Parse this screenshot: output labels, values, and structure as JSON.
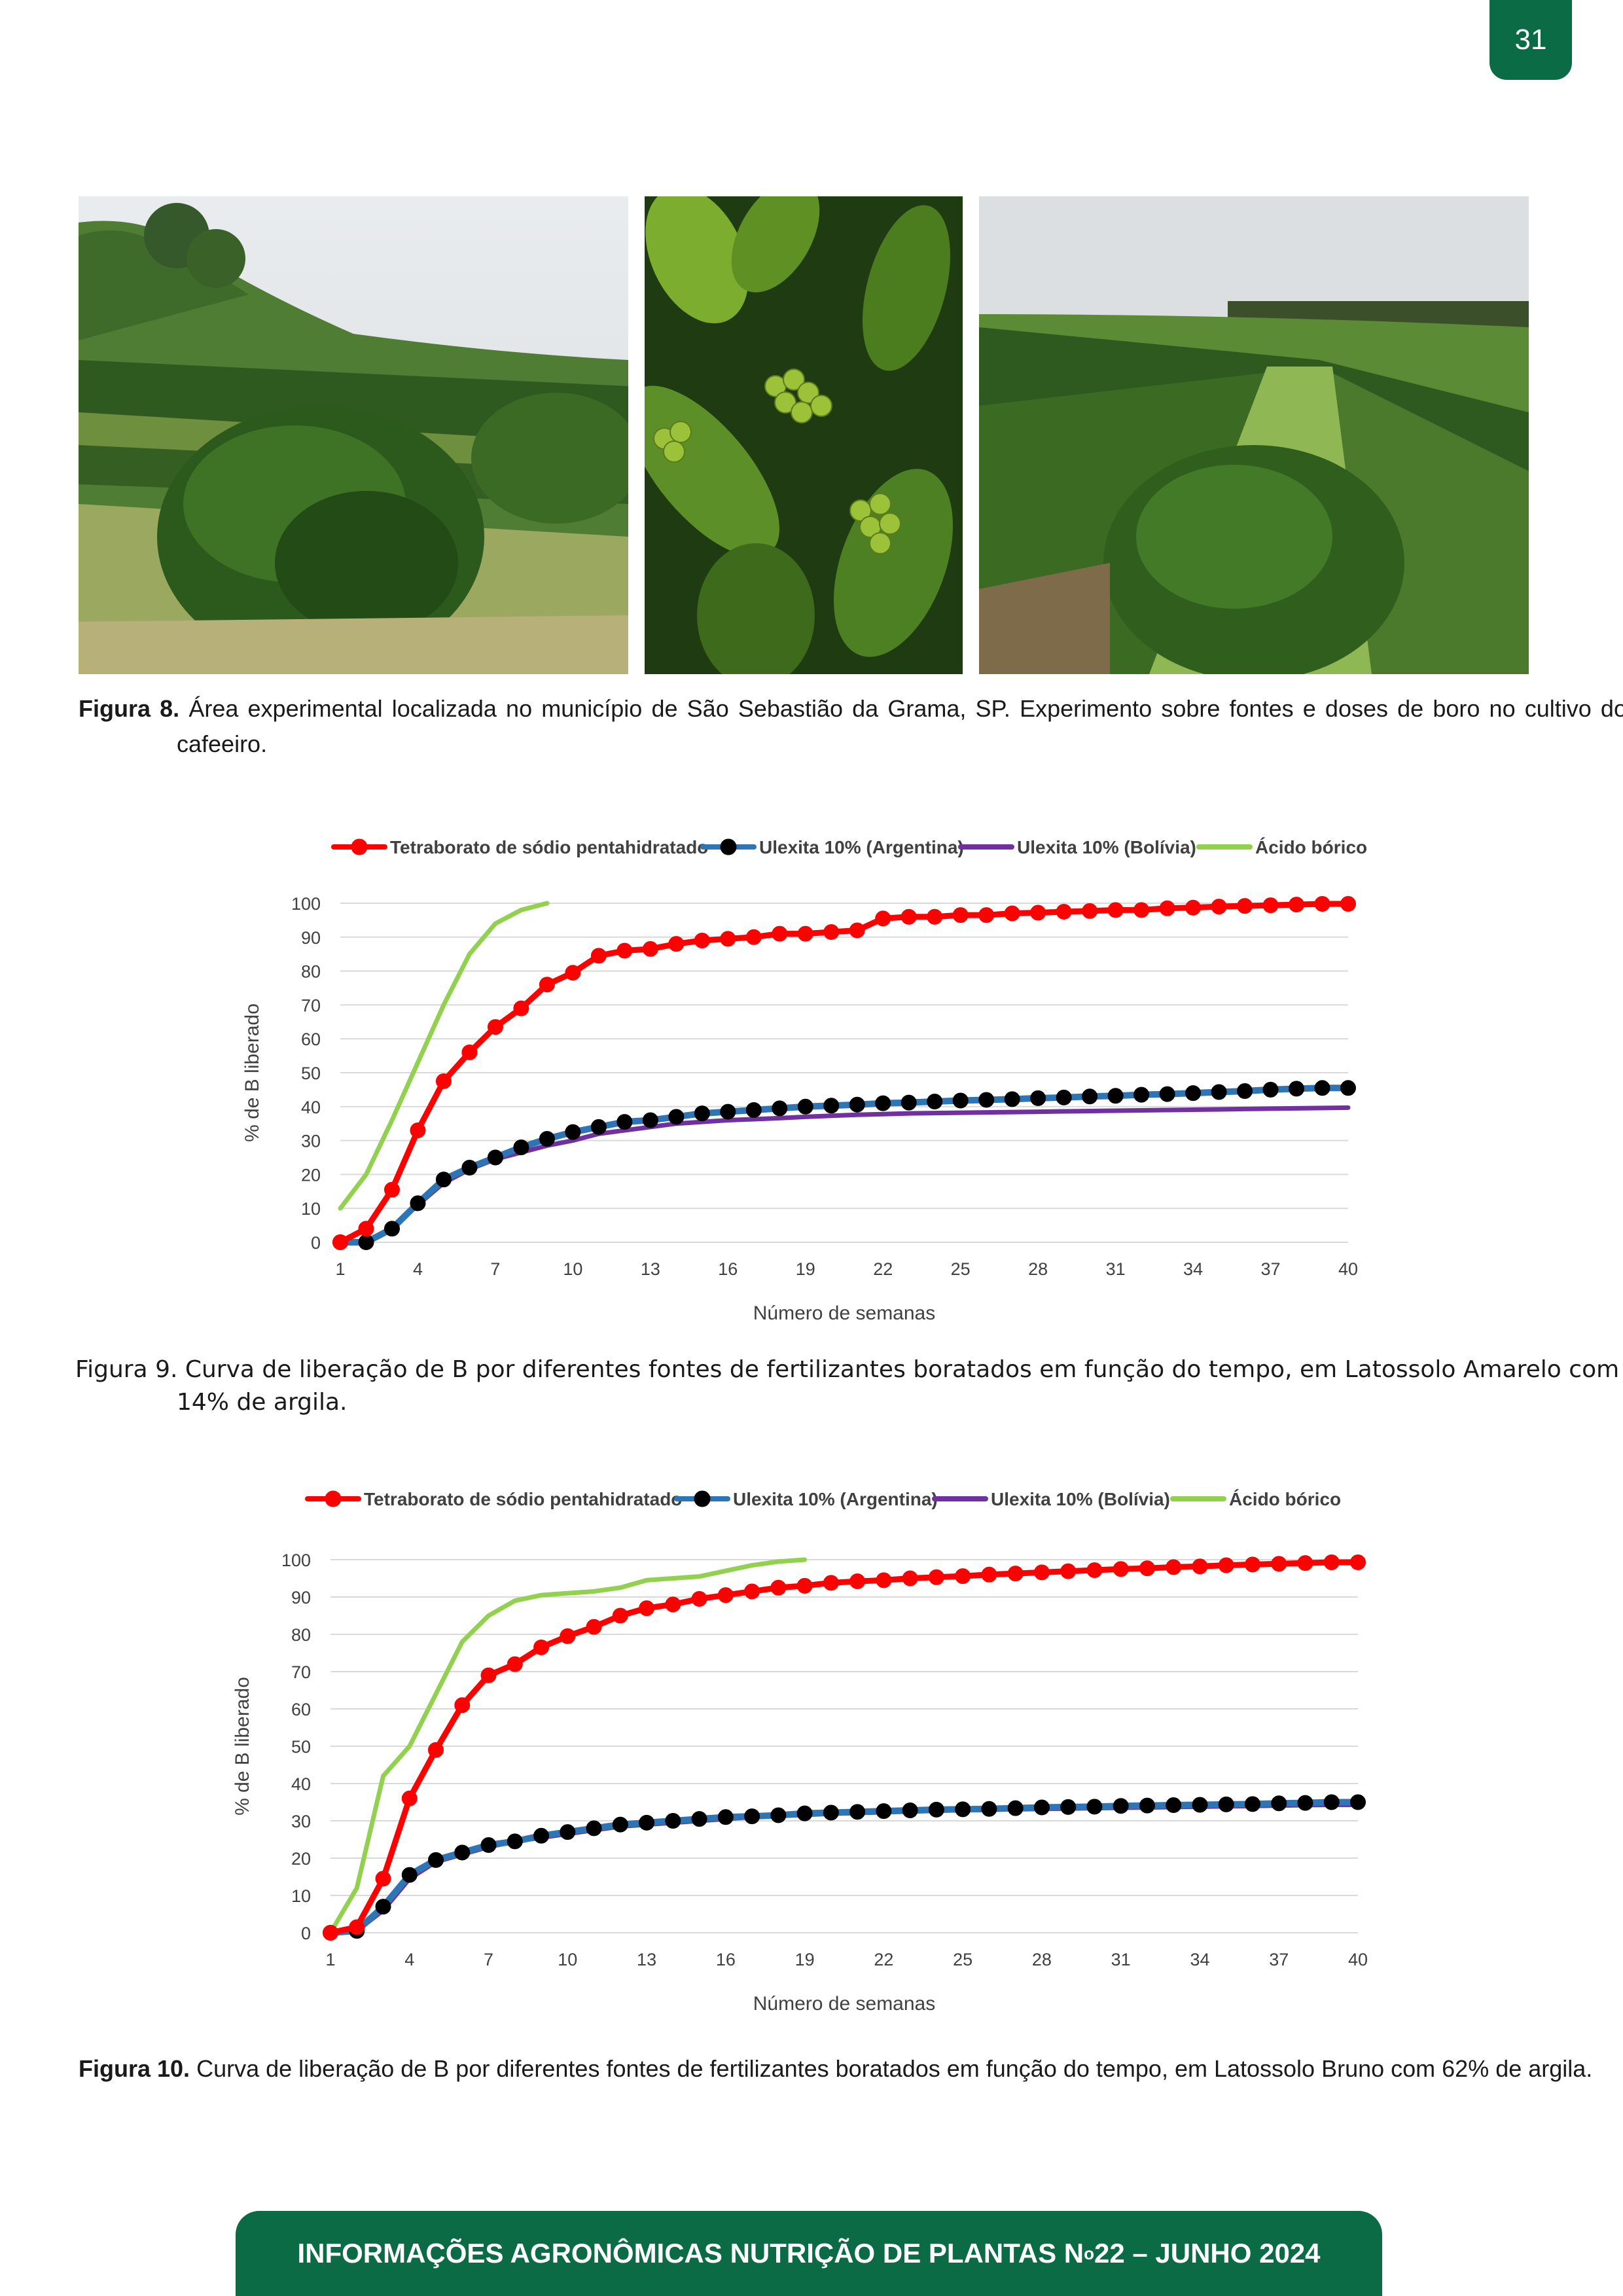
{
  "page_number": "31",
  "figure8": {
    "label": "Figura 8.",
    "text": "Área experimental localizada no município de São Sebastião da Grama, SP. Experimento sobre fontes e doses de boro no cultivo do cafeeiro."
  },
  "figure9": {
    "caption": "Figura 9. Curva de liberação de B por diferentes fontes de fertilizantes boratados em função do tempo, em Latossolo Amarelo com 14% de argila."
  },
  "figure10": {
    "label": "Figura 10.",
    "text": "Curva de liberação de B por diferentes fontes de fertilizantes boratados em função do tempo, em Latossolo Bruno com 62% de argila."
  },
  "footer": {
    "before": "INFORMAÇÕES AGRONÔMICAS NUTRIÇÃO DE PLANTAS N",
    "sup": "o",
    "after": " 22 – JUNHO 2024"
  },
  "chart_data": [
    {
      "type": "line",
      "xlabel": "Número de semanas",
      "ylabel": "% de B liberado",
      "ylim": [
        0,
        100
      ],
      "yticks": [
        0,
        10,
        20,
        30,
        40,
        50,
        60,
        70,
        80,
        90,
        100
      ],
      "xticks": [
        1,
        4,
        7,
        10,
        13,
        16,
        19,
        22,
        25,
        28,
        31,
        34,
        37,
        40
      ],
      "grid": true,
      "legend": "top",
      "series": [
        {
          "name": "Tetraborato de sódio pentahidratado",
          "color": "#ff0000",
          "marker": "circle",
          "x": [
            1,
            2,
            3,
            4,
            5,
            6,
            7,
            8,
            9,
            10,
            11,
            12,
            13,
            14,
            15,
            16,
            17,
            18,
            19,
            20,
            21,
            22,
            23,
            24,
            25,
            26,
            27,
            28,
            29,
            30,
            31,
            32,
            33,
            34,
            35,
            36,
            37,
            38,
            39,
            40
          ],
          "values": [
            0,
            4,
            15.5,
            33,
            47.5,
            56,
            63.5,
            69,
            76,
            79.5,
            84.5,
            86,
            86.5,
            88,
            89,
            89.5,
            90,
            91,
            91,
            91.5,
            92,
            95.5,
            96,
            96,
            96.5,
            96.5,
            97,
            97.2,
            97.5,
            97.7,
            98,
            98,
            98.5,
            98.7,
            99,
            99.2,
            99.4,
            99.6,
            99.8,
            99.8
          ]
        },
        {
          "name": "Ulexita 10% (Argentina)",
          "color": "#2e75b6",
          "marker": "circle",
          "x": [
            1,
            2,
            3,
            4,
            5,
            6,
            7,
            8,
            9,
            10,
            11,
            12,
            13,
            14,
            15,
            16,
            17,
            18,
            19,
            20,
            21,
            22,
            23,
            24,
            25,
            26,
            27,
            28,
            29,
            30,
            31,
            32,
            33,
            34,
            35,
            36,
            37,
            38,
            39,
            40
          ],
          "values": [
            0,
            0,
            4,
            11.5,
            18.5,
            22,
            25,
            28,
            30.5,
            32.5,
            34,
            35.5,
            36,
            37,
            38,
            38.5,
            39,
            39.5,
            40,
            40.3,
            40.6,
            41,
            41.2,
            41.5,
            41.8,
            42,
            42.2,
            42.5,
            42.7,
            43,
            43.2,
            43.5,
            43.7,
            44,
            44.3,
            44.6,
            45,
            45.3,
            45.5,
            45.5
          ]
        },
        {
          "name": "Ulexita 10% (Bolívia)",
          "color": "#7030a0",
          "marker": "none",
          "x": [
            1,
            2,
            3,
            4,
            5,
            6,
            7,
            8,
            9,
            10,
            11,
            12,
            13,
            14,
            15,
            16,
            17,
            18,
            19,
            20,
            21,
            22,
            23,
            24,
            25,
            26,
            27,
            28,
            29,
            30,
            31,
            32,
            33,
            34,
            35,
            36,
            37,
            38,
            39,
            40
          ],
          "values": [
            0,
            0,
            4,
            11,
            17.5,
            21.5,
            24.5,
            26.5,
            28.5,
            30,
            32,
            33,
            34,
            35,
            35.5,
            36,
            36.3,
            36.6,
            37,
            37.3,
            37.6,
            37.8,
            38,
            38.1,
            38.2,
            38.3,
            38.4,
            38.5,
            38.6,
            38.7,
            38.8,
            38.9,
            39,
            39.1,
            39.2,
            39.3,
            39.4,
            39.5,
            39.6,
            39.7
          ]
        },
        {
          "name": "Ácido bórico",
          "color": "#92d050",
          "marker": "none",
          "x": [
            1,
            2,
            3,
            4,
            5,
            6,
            7,
            8,
            9
          ],
          "values": [
            10,
            20,
            36,
            53,
            70,
            85,
            94,
            98,
            100
          ]
        }
      ]
    },
    {
      "type": "line",
      "xlabel": "Número de semanas",
      "ylabel": "% de B liberado",
      "ylim": [
        0,
        100
      ],
      "yticks": [
        0,
        10,
        20,
        30,
        40,
        50,
        60,
        70,
        80,
        90,
        100
      ],
      "xticks": [
        1,
        4,
        7,
        10,
        13,
        16,
        19,
        22,
        25,
        28,
        31,
        34,
        37,
        40
      ],
      "grid": true,
      "legend": "top",
      "series": [
        {
          "name": "Tetraborato de sódio pentahidratado",
          "color": "#ff0000",
          "marker": "circle",
          "x": [
            1,
            2,
            3,
            4,
            5,
            6,
            7,
            8,
            9,
            10,
            11,
            12,
            13,
            14,
            15,
            16,
            17,
            18,
            19,
            20,
            21,
            22,
            23,
            24,
            25,
            26,
            27,
            28,
            29,
            30,
            31,
            32,
            33,
            34,
            35,
            36,
            37,
            38,
            39,
            40
          ],
          "values": [
            0,
            1.5,
            14.5,
            36,
            49,
            61,
            69,
            72,
            76.5,
            79.5,
            82,
            85,
            87,
            88,
            89.5,
            90.5,
            91.5,
            92.5,
            93,
            93.8,
            94.2,
            94.5,
            95,
            95.3,
            95.6,
            96,
            96.3,
            96.6,
            96.9,
            97.2,
            97.5,
            97.7,
            98,
            98.2,
            98.5,
            98.7,
            98.9,
            99.1,
            99.3,
            99.3
          ]
        },
        {
          "name": "Ulexita 10% (Argentina)",
          "color": "#2e75b6",
          "marker": "circle",
          "x": [
            1,
            2,
            3,
            4,
            5,
            6,
            7,
            8,
            9,
            10,
            11,
            12,
            13,
            14,
            15,
            16,
            17,
            18,
            19,
            20,
            21,
            22,
            23,
            24,
            25,
            26,
            27,
            28,
            29,
            30,
            31,
            32,
            33,
            34,
            35,
            36,
            37,
            38,
            39,
            40
          ],
          "values": [
            0,
            0.5,
            7,
            15.5,
            19.5,
            21.5,
            23.5,
            24.5,
            26,
            27,
            28,
            29,
            29.5,
            30,
            30.5,
            31,
            31.2,
            31.5,
            32,
            32.2,
            32.4,
            32.6,
            32.8,
            33,
            33.1,
            33.2,
            33.4,
            33.6,
            33.7,
            33.8,
            34,
            34.1,
            34.2,
            34.3,
            34.4,
            34.5,
            34.7,
            34.8,
            35,
            35
          ]
        },
        {
          "name": "Ulexita 10% (Bolívia)",
          "color": "#7030a0",
          "marker": "none",
          "x": [
            1,
            2,
            3,
            4,
            5,
            6,
            7,
            8,
            9,
            10,
            11,
            12,
            13,
            14,
            15,
            16,
            17,
            18,
            19,
            20,
            21,
            22,
            23,
            24,
            25,
            26,
            27,
            28,
            29,
            30,
            31,
            32,
            33,
            34,
            35,
            36,
            37,
            38,
            39,
            40
          ],
          "values": [
            0,
            0.5,
            6,
            14.5,
            19,
            21,
            23,
            24.5,
            25.5,
            26.5,
            27.5,
            28.5,
            29,
            29.5,
            30,
            30.5,
            31,
            31.3,
            31.6,
            31.9,
            32.1,
            32.3,
            32.5,
            32.7,
            32.9,
            33,
            33.1,
            33.2,
            33.3,
            33.4,
            33.5,
            33.6,
            33.7,
            33.8,
            33.9,
            34,
            34.1,
            34.2,
            34.3,
            34.3
          ]
        },
        {
          "name": "Ácido bórico",
          "color": "#92d050",
          "marker": "none",
          "x": [
            1,
            2,
            3,
            4,
            5,
            6,
            7,
            8,
            9,
            10,
            11,
            12,
            13,
            14,
            15,
            16,
            17,
            18,
            19
          ],
          "values": [
            0,
            12,
            42,
            50,
            64,
            78,
            85,
            89,
            90.5,
            91,
            91.5,
            92.5,
            94.5,
            95,
            95.5,
            97,
            98.5,
            99.5,
            100
          ]
        }
      ]
    }
  ]
}
